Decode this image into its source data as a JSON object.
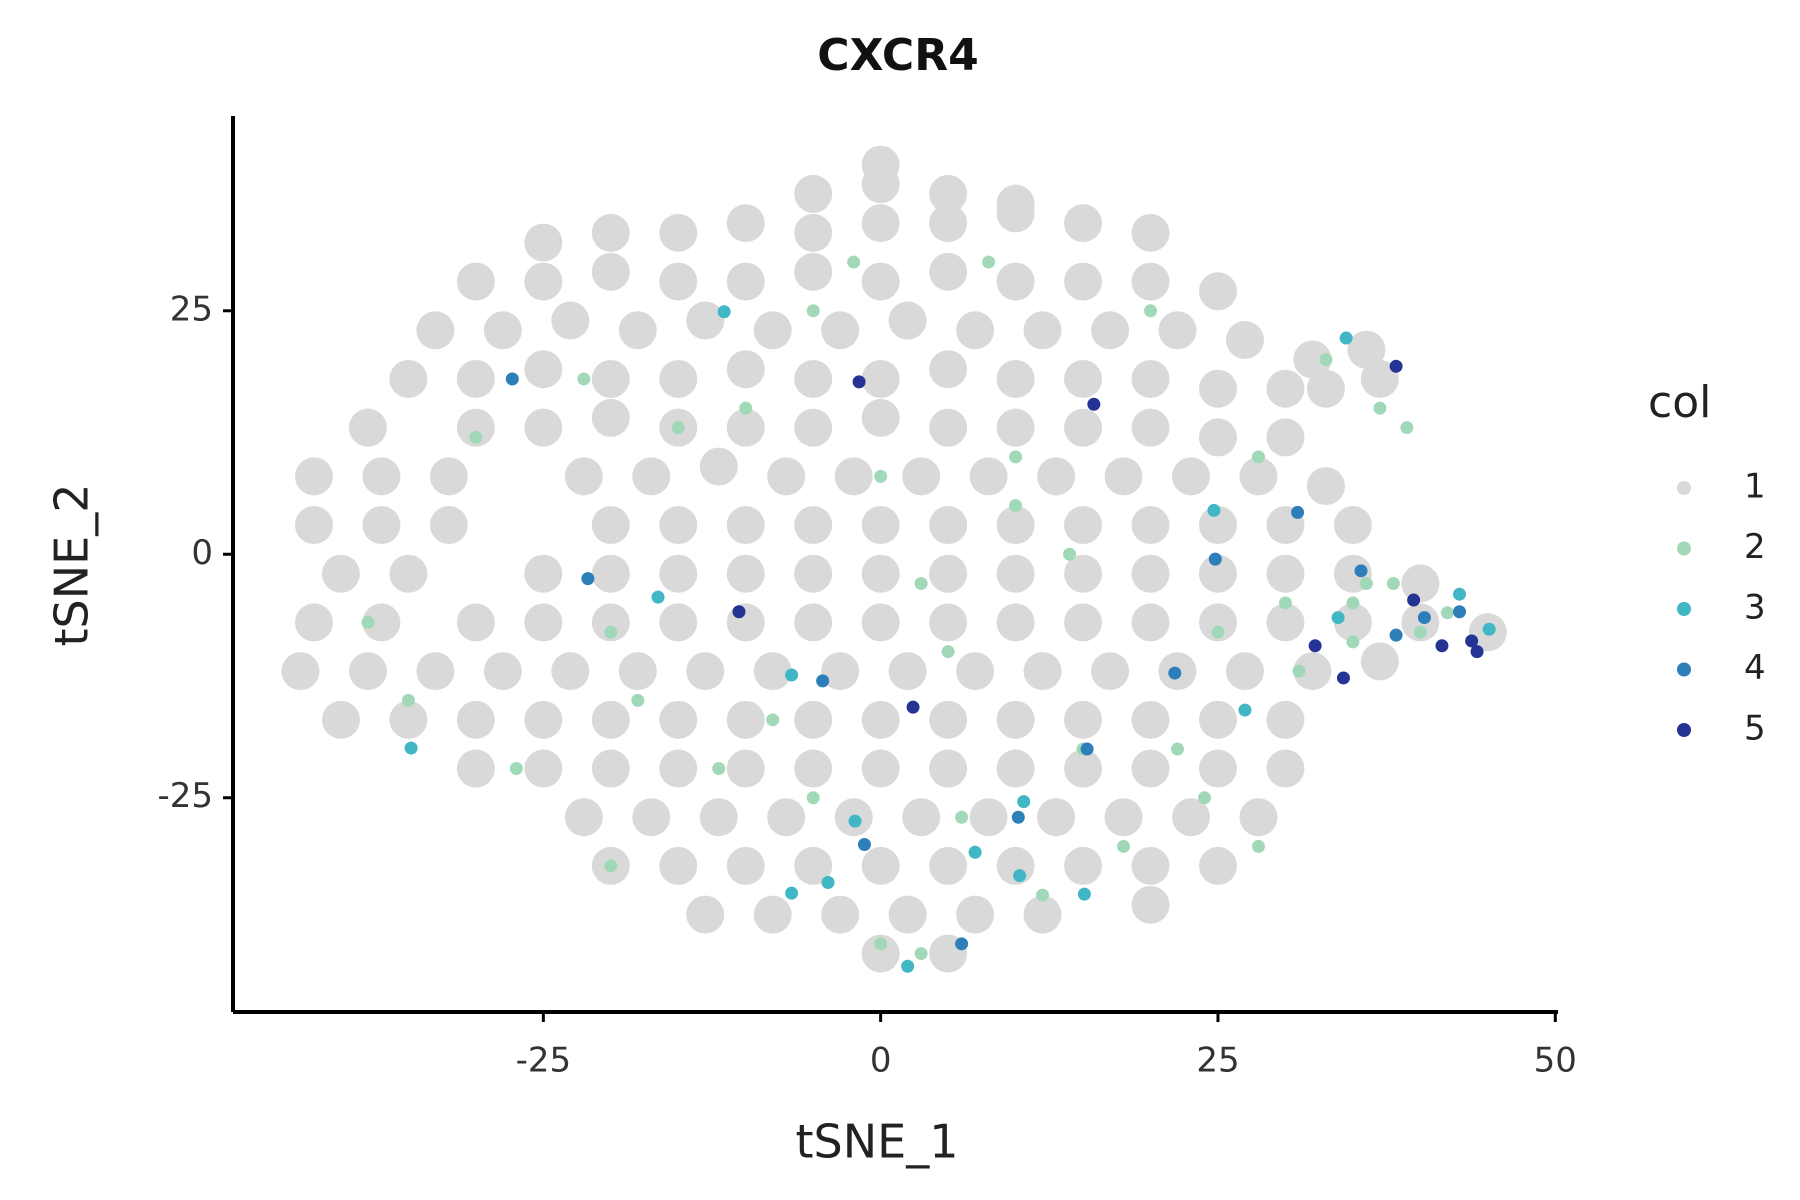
{
  "chart_data": {
    "type": "scatter",
    "title": "CXCR4",
    "x_label": "tSNE_1",
    "y_label": "tSNE_2",
    "legend_title": "col",
    "xlim": [
      -48,
      50.2
    ],
    "ylim": [
      -47,
      45
    ],
    "xticks": [
      -25,
      0,
      25,
      50
    ],
    "yticks": [
      -25,
      0,
      25
    ],
    "grid": false,
    "legend": "right",
    "series": [
      {
        "name": "1",
        "color": "#d9d9d9",
        "x": [
          -5,
          0,
          5,
          10,
          0,
          -25,
          -20,
          -15,
          -10,
          -5,
          0,
          5,
          10,
          15,
          20,
          -30,
          -25,
          -20,
          -15,
          -10,
          -5,
          0,
          5,
          10,
          15,
          20,
          25,
          -33,
          -28,
          -23,
          -18,
          -13,
          -8,
          -3,
          2,
          7,
          12,
          17,
          22,
          27,
          32,
          36,
          -35,
          -30,
          -25,
          -20,
          -15,
          -10,
          -5,
          0,
          5,
          10,
          15,
          20,
          25,
          30,
          33,
          37,
          -38,
          -30,
          -25,
          -20,
          -15,
          -10,
          -5,
          0,
          5,
          10,
          15,
          20,
          25,
          30,
          -42,
          -37,
          -32,
          -22,
          -17,
          -12,
          -7,
          -2,
          3,
          8,
          13,
          18,
          23,
          28,
          33,
          -42,
          -37,
          -32,
          -20,
          -15,
          -10,
          -5,
          0,
          5,
          10,
          15,
          20,
          25,
          30,
          35,
          -40,
          -35,
          -25,
          -20,
          -15,
          -10,
          -5,
          0,
          5,
          10,
          15,
          20,
          25,
          30,
          35,
          40,
          -42,
          -37,
          -30,
          -25,
          -20,
          -15,
          -10,
          -5,
          0,
          5,
          10,
          15,
          20,
          25,
          30,
          35,
          40,
          45,
          -43,
          -38,
          -33,
          -28,
          -23,
          -18,
          -13,
          -8,
          -3,
          2,
          7,
          12,
          17,
          22,
          27,
          32,
          37,
          -40,
          -35,
          -30,
          -25,
          -20,
          -15,
          -10,
          -5,
          0,
          5,
          10,
          15,
          20,
          25,
          30,
          -30,
          -25,
          -20,
          -15,
          -10,
          -5,
          0,
          5,
          10,
          15,
          20,
          25,
          30,
          -22,
          -17,
          -12,
          -7,
          -2,
          3,
          8,
          13,
          18,
          23,
          28,
          -20,
          -15,
          -10,
          -5,
          0,
          5,
          10,
          15,
          20,
          25,
          -13,
          -8,
          -3,
          2,
          7,
          12,
          20,
          0,
          5
        ],
        "y": [
          37,
          38,
          37,
          36,
          40,
          32,
          33,
          33,
          34,
          33,
          34,
          34,
          35,
          34,
          33,
          28,
          28,
          29,
          28,
          28,
          29,
          28,
          29,
          28,
          28,
          28,
          27,
          23,
          23,
          24,
          23,
          24,
          23,
          23,
          24,
          23,
          23,
          23,
          23,
          22,
          20,
          21,
          18,
          18,
          19,
          18,
          18,
          19,
          18,
          18,
          19,
          18,
          18,
          18,
          17,
          17,
          17,
          18,
          13,
          13,
          13,
          14,
          13,
          13,
          13,
          14,
          13,
          13,
          13,
          13,
          12,
          12,
          8,
          8,
          8,
          8,
          8,
          9,
          8,
          8,
          8,
          8,
          8,
          8,
          8,
          8,
          7,
          3,
          3,
          3,
          3,
          3,
          3,
          3,
          3,
          3,
          3,
          3,
          3,
          3,
          3,
          3,
          -2,
          -2,
          -2,
          -2,
          -2,
          -2,
          -2,
          -2,
          -2,
          -2,
          -2,
          -2,
          -2,
          -2,
          -2,
          -3,
          -7,
          -7,
          -7,
          -7,
          -7,
          -7,
          -7,
          -7,
          -7,
          -7,
          -7,
          -7,
          -7,
          -7,
          -7,
          -7,
          -7,
          -8,
          -12,
          -12,
          -12,
          -12,
          -12,
          -12,
          -12,
          -12,
          -12,
          -12,
          -12,
          -12,
          -12,
          -12,
          -12,
          -12,
          -11,
          -17,
          -17,
          -17,
          -17,
          -17,
          -17,
          -17,
          -17,
          -17,
          -17,
          -17,
          -17,
          -17,
          -17,
          -17,
          -22,
          -22,
          -22,
          -22,
          -22,
          -22,
          -22,
          -22,
          -22,
          -22,
          -22,
          -22,
          -22,
          -27,
          -27,
          -27,
          -27,
          -27,
          -27,
          -27,
          -27,
          -27,
          -27,
          -27,
          -32,
          -32,
          -32,
          -32,
          -32,
          -32,
          -32,
          -32,
          -32,
          -32,
          -37,
          -37,
          -37,
          -37,
          -37,
          -37,
          -36,
          -41,
          -41
        ]
      },
      {
        "name": "2",
        "color": "#a1d9b8",
        "x": [
          -22,
          -30,
          -20,
          -10,
          -5,
          -15,
          0,
          5,
          10,
          15,
          20,
          25,
          30,
          35,
          38,
          40,
          42,
          33,
          37,
          39,
          -5,
          0,
          3,
          12,
          18,
          28,
          -20,
          -35,
          -38,
          -27,
          10,
          -12,
          22,
          28,
          36,
          35,
          8,
          -2,
          14,
          -18,
          6,
          -8,
          24,
          31,
          3
        ],
        "y": [
          18,
          12,
          -8,
          15,
          25,
          13,
          8,
          -10,
          5,
          -20,
          25,
          -8,
          -5,
          -5,
          -3,
          -8,
          -6,
          20,
          15,
          13,
          -25,
          -40,
          -41,
          -35,
          -30,
          -30,
          -32,
          -15,
          -7,
          -22,
          10,
          -22,
          -20,
          10,
          -3,
          -9,
          30,
          30,
          0,
          -15,
          -27,
          -17,
          -25,
          -12,
          -3
        ]
      },
      {
        "name": "3",
        "color": "#41b6c4",
        "x": [
          -11.6,
          34.5,
          24.7,
          -16.5,
          -34.8,
          -6.6,
          -1.9,
          -3.9,
          10.6,
          10.3,
          15.1,
          27,
          42.9,
          45.1,
          2,
          -6.6,
          7,
          33.9
        ],
        "y": [
          24.9,
          22.2,
          4.5,
          -4.4,
          -19.9,
          -12.4,
          -27.4,
          -33.7,
          -25.4,
          -33,
          -34.9,
          -16,
          -4.1,
          -7.7,
          -42.3,
          -34.8,
          -30.6,
          -6.5
        ]
      },
      {
        "name": "4",
        "color": "#2c7fb8",
        "x": [
          -21.7,
          24.8,
          -4.3,
          15.3,
          10.2,
          -1.2,
          30.9,
          35.6,
          40.3,
          42.9,
          38.2,
          6,
          -27.3,
          21.8
        ],
        "y": [
          -2.5,
          -0.5,
          -13,
          -20,
          -27,
          -29.8,
          4.3,
          -1.7,
          -6.5,
          -5.9,
          -8.3,
          -40,
          18,
          -12.2
        ]
      },
      {
        "name": "5",
        "color": "#253494",
        "x": [
          -1.6,
          15.8,
          41.6,
          44.2,
          34.3,
          43.8,
          38.2,
          2.4,
          32.2,
          -10.5,
          39.5
        ],
        "y": [
          17.7,
          15.4,
          -9.4,
          -10,
          -12.7,
          -8.9,
          19.3,
          -15.7,
          -9.4,
          -5.9,
          -4.7
        ]
      }
    ]
  }
}
